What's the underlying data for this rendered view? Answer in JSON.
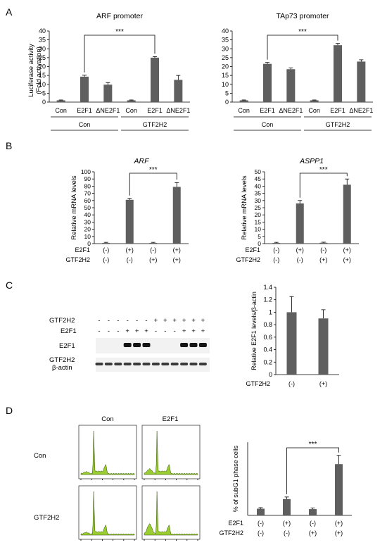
{
  "panels": {
    "A": {
      "letter": "A",
      "ylabel": "Luciferase activity",
      "ylabel2": "(Fold activation)",
      "group_labels": [
        "Con",
        "GTF2H2"
      ],
      "chart_data": [
        {
          "type": "bar",
          "title": "ARF promoter",
          "categories": [
            "Con",
            "E2F1",
            "ΔNE2F1",
            "Con",
            "E2F1",
            "ΔNE2F1"
          ],
          "values": [
            1,
            14.3,
            9.8,
            1,
            25,
            12.5
          ],
          "errors": [
            0.2,
            0.8,
            1.2,
            0.2,
            0.6,
            2.5
          ],
          "ylim": [
            0,
            40
          ],
          "yticks": [
            0,
            5,
            10,
            15,
            20,
            25,
            30,
            35,
            40
          ],
          "significance": {
            "from": 1,
            "to": 4,
            "label": "***"
          }
        },
        {
          "type": "bar",
          "title": "TAp73 promoter",
          "categories": [
            "Con",
            "E2F1",
            "ΔNE2F1",
            "Con",
            "E2F1",
            "ΔNE2F1"
          ],
          "values": [
            1,
            21.5,
            18.5,
            1,
            32,
            22.8
          ],
          "errors": [
            0.2,
            0.8,
            0.7,
            0.2,
            1.0,
            1.0
          ],
          "ylim": [
            0,
            40
          ],
          "yticks": [
            0,
            5,
            10,
            15,
            20,
            25,
            30,
            35,
            40
          ],
          "significance": {
            "from": 1,
            "to": 4,
            "label": "***"
          }
        }
      ]
    },
    "B": {
      "letter": "B",
      "ylabel": "Relative mRNA levels",
      "row_labels": [
        "E2F1",
        "GTF2H2"
      ],
      "conditions": [
        [
          "(-)",
          "(-)"
        ],
        [
          "(+)",
          "(-)"
        ],
        [
          "(-)",
          "(+)"
        ],
        [
          "(+)",
          "(+)"
        ]
      ],
      "chart_data": [
        {
          "type": "bar",
          "title": "ARF",
          "categories": [
            "1",
            "2",
            "3",
            "4"
          ],
          "values": [
            1,
            61,
            1,
            79
          ],
          "errors": [
            0.8,
            2,
            0.8,
            6
          ],
          "ylim": [
            0,
            100
          ],
          "yticks": [
            0,
            10,
            20,
            30,
            40,
            50,
            60,
            70,
            80,
            90,
            100
          ],
          "significance": {
            "from": 1,
            "to": 3,
            "label": "***"
          }
        },
        {
          "type": "bar",
          "title": "ASPP1",
          "categories": [
            "1",
            "2",
            "3",
            "4"
          ],
          "values": [
            0.5,
            28,
            0.6,
            41
          ],
          "errors": [
            0.4,
            2,
            0.4,
            4
          ],
          "ylim": [
            0,
            50
          ],
          "yticks": [
            0,
            5,
            10,
            15,
            20,
            25,
            30,
            35,
            40,
            45,
            50
          ],
          "significance": {
            "from": 1,
            "to": 3,
            "label": "***"
          }
        }
      ]
    },
    "C": {
      "letter": "C",
      "blot": {
        "row_labels": [
          "GTF2H2",
          "E2F1",
          "E2F1",
          "GTF2H2",
          "β-actin"
        ],
        "gtf2h2_signs": [
          "-",
          "-",
          "-",
          "-",
          "-",
          "-",
          "+",
          "+",
          "+",
          "+",
          "+",
          "+"
        ],
        "e2f1_signs": [
          "-",
          "-",
          "-",
          "+",
          "+",
          "+",
          "-",
          "-",
          "-",
          "+",
          "+",
          "+"
        ]
      },
      "ylabel": "Relative E2F1 levels/β-actin",
      "row_label": "GTF2H2",
      "conditions": [
        "(-)",
        "(+)"
      ],
      "chart_data": {
        "type": "bar",
        "categories": [
          "(-)",
          "(+)"
        ],
        "values": [
          1.0,
          0.9
        ],
        "errors": [
          0.25,
          0.14
        ],
        "ylim": [
          0,
          1.4
        ],
        "yticks": [
          "0",
          "0.2",
          "0.4",
          "0.6",
          "0.8",
          "1",
          "1.2",
          "1.4"
        ]
      }
    },
    "D": {
      "letter": "D",
      "col_labels": [
        "Con",
        "E2F1"
      ],
      "row_labels": [
        "Con",
        "GTF2H2"
      ],
      "ylabel": "% of subG1 phase cells",
      "row_labels_bar": [
        "E2F1",
        "GTF2H2"
      ],
      "conditions": [
        [
          "(-)",
          "(-)"
        ],
        [
          "(+)",
          "(-)"
        ],
        [
          "(-)",
          "(+)"
        ],
        [
          "(+)",
          "(+)"
        ]
      ],
      "chart_data": {
        "type": "bar",
        "categories": [
          "1",
          "2",
          "3",
          "4"
        ],
        "values": [
          3.2,
          7.8,
          3.0,
          24.5
        ],
        "errors": [
          0.5,
          1.0,
          0.5,
          4.2
        ],
        "ylim": [
          0,
          35
        ],
        "significance": {
          "from": 1,
          "to": 3,
          "label": "***"
        }
      }
    }
  }
}
